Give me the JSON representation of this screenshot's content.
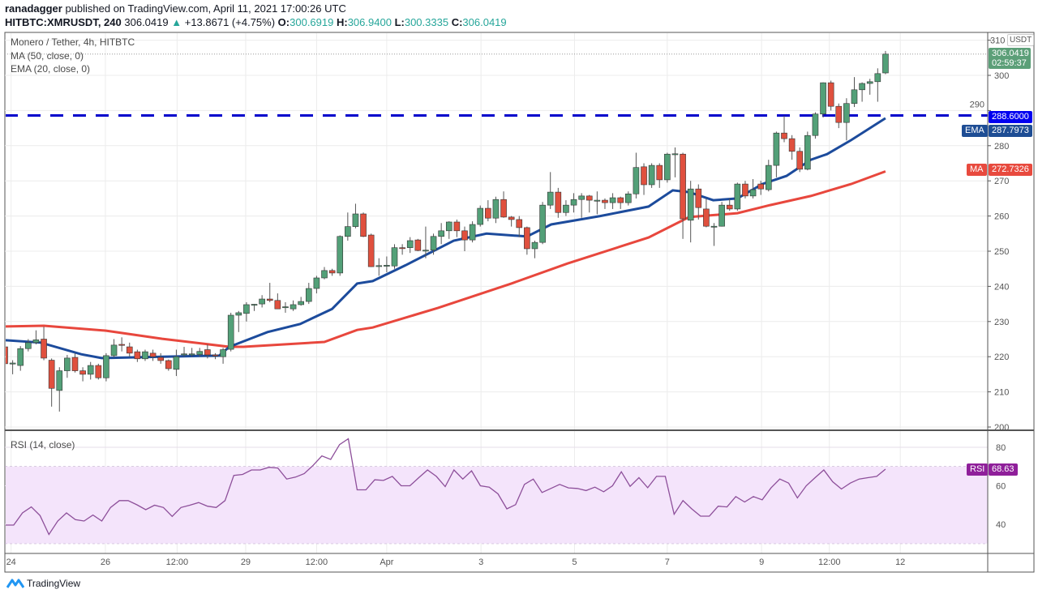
{
  "header": {
    "author": "ranadagger",
    "published": "published on TradingView.com, April 11, 2021 17:00:26 UTC",
    "symbol": "HITBTC:XMRUSDT, 240",
    "last": "306.0419",
    "change_arrow": "▲",
    "change": "+13.8671 (+4.75%)",
    "o_label": "O:",
    "o": "300.6919",
    "h_label": "H:",
    "h": "306.9400",
    "l_label": "L:",
    "l": "300.3335",
    "c_label": "C:",
    "c": "306.0419"
  },
  "legend": {
    "title": "Monero / Tether, 4h, HITBTC",
    "ma": "MA (50, close, 0)",
    "ema": "EMA (20, close, 0)",
    "rsi": "RSI (14, close)"
  },
  "badges": {
    "currency": "USDT",
    "price": "306.0419",
    "countdown": "02:59:37",
    "level": "288.6000",
    "ema_label": "EMA",
    "ema_value": "287.7973",
    "ma_label": "MA",
    "ma_value": "272.7326",
    "rsi_label": "RSI",
    "rsi_value": "68.63"
  },
  "footer": {
    "brand": "TradingView"
  },
  "colors": {
    "up": "#53a078",
    "down": "#e0503e",
    "ema": "#1c4b9c",
    "ma": "#e8473d",
    "level": "#0000cc",
    "rsi": "#8d4f9a",
    "rsi_fill": "#f4e4fb"
  },
  "chart_data": {
    "type": "candlestick",
    "title": "Monero / Tether, 4h, HITBTC",
    "ylabel": "USDT",
    "ylim": [
      199,
      311
    ],
    "price_ticks": [
      "310",
      "300",
      "290",
      "280",
      "270",
      "260",
      "250",
      "240",
      "230",
      "220",
      "210",
      "200"
    ],
    "x_ticks": [
      {
        "label": "24",
        "index": 0.8
      },
      {
        "label": "26",
        "index": 12.9
      },
      {
        "label": "12:00",
        "index": 22.1
      },
      {
        "label": "29",
        "index": 30.9
      },
      {
        "label": "12:00",
        "index": 40
      },
      {
        "label": "Apr",
        "index": 49
      },
      {
        "label": "3",
        "index": 61.1
      },
      {
        "label": "5",
        "index": 73.1
      },
      {
        "label": "7",
        "index": 85
      },
      {
        "label": "9",
        "index": 97.1
      },
      {
        "label": "12:00",
        "index": 105.8
      },
      {
        "label": "12",
        "index": 114.9
      }
    ],
    "horizontal_level": 288.6,
    "ohlc": [
      [
        222.8,
        223.5,
        217,
        218
      ],
      [
        218,
        219,
        215,
        218.2
      ],
      [
        217.5,
        223,
        216,
        222.3
      ],
      [
        222.3,
        225,
        221.5,
        224
      ],
      [
        224,
        227.5,
        223.5,
        224.8
      ],
      [
        225,
        228.5,
        219,
        219.6
      ],
      [
        219,
        219.5,
        205.8,
        211
      ],
      [
        210.4,
        217,
        204.4,
        216
      ],
      [
        216,
        220.5,
        214,
        219.6
      ],
      [
        219.8,
        221,
        215.5,
        216
      ],
      [
        216,
        217,
        213,
        215
      ],
      [
        215,
        218.5,
        213.5,
        217.5
      ],
      [
        217.5,
        218,
        213.5,
        214
      ],
      [
        214,
        221,
        213,
        220.3
      ],
      [
        220.3,
        225,
        219.8,
        223.3
      ],
      [
        223.5,
        225.5,
        221.5,
        223.4
      ],
      [
        222.8,
        224,
        220,
        221
      ],
      [
        221.4,
        222,
        218.5,
        219.4
      ],
      [
        219.4,
        222,
        218.8,
        221.4
      ],
      [
        221,
        222,
        218.8,
        220
      ],
      [
        219.8,
        221,
        218,
        218.9
      ],
      [
        218.9,
        219.2,
        216,
        216.6
      ],
      [
        216.4,
        222,
        214.5,
        220
      ],
      [
        220.7,
        222.8,
        220,
        220.8
      ],
      [
        220.7,
        222.5,
        220,
        220.8
      ],
      [
        220.6,
        222.5,
        220,
        221.5
      ],
      [
        222,
        223.5,
        219.5,
        220.5
      ],
      [
        220.5,
        221,
        219.3,
        220.2
      ],
      [
        220,
        222.5,
        218,
        222
      ],
      [
        222.1,
        232.5,
        221.5,
        231.8
      ],
      [
        231.8,
        233,
        227,
        232.5
      ],
      [
        232.3,
        235.5,
        230,
        234.8
      ],
      [
        234.8,
        235,
        233,
        234.9
      ],
      [
        235,
        237.5,
        234,
        236.4
      ],
      [
        236.4,
        241,
        235.5,
        236
      ],
      [
        236,
        238,
        233.6,
        233.6
      ],
      [
        234,
        235.5,
        232.5,
        234.2
      ],
      [
        233.6,
        236,
        233,
        234.8
      ],
      [
        234.8,
        237,
        234.5,
        235.7
      ],
      [
        235.7,
        241,
        235,
        239.4
      ],
      [
        239.4,
        243,
        238,
        242.4
      ],
      [
        242.4,
        245.5,
        242,
        244.5
      ],
      [
        244.5,
        245,
        243,
        243.8
      ],
      [
        243.8,
        254.5,
        243,
        254.2
      ],
      [
        254.2,
        261,
        253,
        257
      ],
      [
        257,
        263.5,
        256.5,
        260.6
      ],
      [
        260.6,
        261,
        254,
        254.2
      ],
      [
        254.6,
        255,
        245.5,
        245.6
      ],
      [
        245.8,
        248,
        243,
        245.9
      ],
      [
        245.9,
        248.5,
        244,
        246
      ],
      [
        245.8,
        252,
        245,
        251
      ],
      [
        251,
        252,
        249,
        250.9
      ],
      [
        251,
        254,
        249.5,
        253
      ],
      [
        253.2,
        253.5,
        250,
        250.2
      ],
      [
        250.2,
        257,
        248,
        250.3
      ],
      [
        250.3,
        255,
        249,
        254.2
      ],
      [
        254.2,
        258,
        252,
        255.8
      ],
      [
        255.8,
        258.5,
        253.5,
        258.3
      ],
      [
        258.3,
        259,
        254,
        255.8
      ],
      [
        255.8,
        257,
        250,
        253.2
      ],
      [
        253.2,
        258.5,
        252.5,
        257.6
      ],
      [
        257.6,
        263,
        257,
        262.2
      ],
      [
        262.2,
        264.5,
        258.5,
        259.4
      ],
      [
        259.4,
        265.5,
        258,
        264.7
      ],
      [
        264.7,
        267,
        259.5,
        259.7
      ],
      [
        259.7,
        260,
        257,
        259
      ],
      [
        259,
        260,
        254,
        256.7
      ],
      [
        256.7,
        257,
        249,
        250.7
      ],
      [
        250.7,
        253,
        248,
        252.5
      ],
      [
        252.5,
        264,
        252,
        263.1
      ],
      [
        263.1,
        272.5,
        262,
        266.8
      ],
      [
        266.8,
        268,
        259.5,
        261
      ],
      [
        261,
        264.5,
        260,
        263.1
      ],
      [
        263.1,
        266.5,
        261,
        264.7
      ],
      [
        264.7,
        266.5,
        259.5,
        265.7
      ],
      [
        265.7,
        266,
        261,
        264.5
      ],
      [
        264.5,
        267,
        260.5,
        264.5
      ],
      [
        264.5,
        265,
        262,
        263.8
      ],
      [
        263.8,
        266.5,
        262,
        265.2
      ],
      [
        265.2,
        265.5,
        262,
        263.8
      ],
      [
        263.8,
        267,
        263,
        266.3
      ],
      [
        266.3,
        278,
        265,
        273.8
      ],
      [
        274,
        275,
        266,
        268.9
      ],
      [
        268.9,
        275,
        268,
        274.4
      ],
      [
        274.4,
        275,
        268,
        270.3
      ],
      [
        270.3,
        278,
        269.5,
        277.6
      ],
      [
        277.6,
        279.5,
        271,
        277.7
      ],
      [
        277.6,
        278,
        253.5,
        259.2
      ],
      [
        258.8,
        270,
        252.5,
        267.7
      ],
      [
        267.7,
        269,
        259,
        262.4
      ],
      [
        262,
        265,
        256.8,
        257.1
      ],
      [
        257,
        258,
        251.5,
        257.1
      ],
      [
        257.1,
        264,
        257,
        263.1
      ],
      [
        263.1,
        265,
        261.5,
        262
      ],
      [
        262,
        269.5,
        261.5,
        269.1
      ],
      [
        269.1,
        270,
        265,
        265.7
      ],
      [
        265.7,
        270.5,
        265,
        267.5
      ],
      [
        269.1,
        270,
        266,
        267.7
      ],
      [
        267.5,
        276,
        267,
        274.4
      ],
      [
        274.4,
        284,
        271,
        283.6
      ],
      [
        283.6,
        288.6,
        281,
        282
      ],
      [
        282,
        283,
        276,
        278.4
      ],
      [
        278.4,
        279.5,
        272.5,
        273.3
      ],
      [
        273.3,
        284,
        273,
        282.9
      ],
      [
        282.9,
        289.5,
        282,
        289
      ],
      [
        289,
        298,
        288,
        297.9
      ],
      [
        297.9,
        298.5,
        290,
        291.2
      ],
      [
        291.2,
        292,
        285,
        286.6
      ],
      [
        286.6,
        293.5,
        281.5,
        292
      ],
      [
        292,
        299.5,
        291,
        295.9
      ],
      [
        295.9,
        298,
        292.5,
        297.7
      ],
      [
        297.7,
        299,
        294.5,
        298.2
      ],
      [
        298.2,
        302,
        292.5,
        300.5
      ],
      [
        300.6919,
        306.94,
        300.3335,
        306.0419
      ]
    ],
    "ema20": [
      [
        0,
        224.7
      ],
      [
        4.6,
        224
      ],
      [
        9.8,
        220.7
      ],
      [
        12.4,
        219.6
      ],
      [
        20.2,
        220
      ],
      [
        27.5,
        220.3
      ],
      [
        28.8,
        222.8
      ],
      [
        33.7,
        227
      ],
      [
        37.9,
        229.3
      ],
      [
        42,
        233.6
      ],
      [
        45.2,
        240.8
      ],
      [
        47.2,
        241.5
      ],
      [
        51.4,
        246
      ],
      [
        57.6,
        253
      ],
      [
        61.8,
        255
      ],
      [
        67,
        254.2
      ],
      [
        70.1,
        257.6
      ],
      [
        76.4,
        260
      ],
      [
        82.6,
        262.7
      ],
      [
        85.7,
        267.3
      ],
      [
        87.8,
        266.8
      ],
      [
        90.9,
        264.5
      ],
      [
        94,
        265
      ],
      [
        97.2,
        269.1
      ],
      [
        100.3,
        271.4
      ],
      [
        103.4,
        276
      ],
      [
        105.5,
        277.6
      ],
      [
        108.6,
        281.6
      ],
      [
        113,
        287.8
      ]
    ],
    "ma50": [
      [
        0,
        228.6
      ],
      [
        5,
        228.8
      ],
      [
        13,
        227.4
      ],
      [
        20.2,
        225.1
      ],
      [
        28.8,
        222.8
      ],
      [
        30.6,
        222.8
      ],
      [
        41,
        224.2
      ],
      [
        45.2,
        227.6
      ],
      [
        47.2,
        228.3
      ],
      [
        55.6,
        233.9
      ],
      [
        65,
        240.8
      ],
      [
        72.2,
        246.5
      ],
      [
        82.6,
        253.9
      ],
      [
        87.8,
        259.7
      ],
      [
        94,
        260.8
      ],
      [
        98.2,
        263.1
      ],
      [
        103.4,
        265.7
      ],
      [
        108.6,
        269.1
      ],
      [
        113,
        272.7
      ]
    ],
    "rsi": {
      "ylim": [
        25,
        88
      ],
      "ticks": [
        "80",
        "60",
        "40"
      ],
      "bands": [
        30,
        70
      ],
      "values": [
        39.6,
        39.6,
        45.9,
        49,
        44.5,
        34.7,
        41.7,
        45.9,
        42.4,
        41.7,
        44.8,
        41.7,
        48.7,
        52.3,
        52.3,
        50.1,
        47.6,
        49.9,
        48.7,
        44.1,
        48.7,
        49.9,
        51.3,
        49.4,
        48.7,
        52.3,
        65.4,
        65.9,
        68.2,
        68.2,
        69.6,
        69.2,
        63.5,
        64.5,
        66.3,
        70.6,
        75.5,
        73.7,
        81.4,
        84.4,
        57.9,
        57.9,
        63.1,
        62.8,
        64.9,
        60,
        60,
        64.2,
        68.2,
        64.9,
        59.6,
        68.2,
        63.5,
        67.8,
        60,
        59.3,
        55.8,
        48,
        50.2,
        60.7,
        63.5,
        56.5,
        58.6,
        60.7,
        58.9,
        58.6,
        57.5,
        59.3,
        56.9,
        60,
        67.3,
        59.7,
        64.2,
        59,
        64.9,
        64.9,
        45.2,
        52.3,
        48,
        44.2,
        44.2,
        49.4,
        49,
        54.4,
        51.6,
        54.4,
        52.7,
        58.9,
        63.5,
        61.4,
        53.7,
        60,
        64.2,
        68.2,
        62.1,
        58.3,
        61.4,
        63.5,
        64.2,
        64.9,
        68.63
      ]
    }
  }
}
